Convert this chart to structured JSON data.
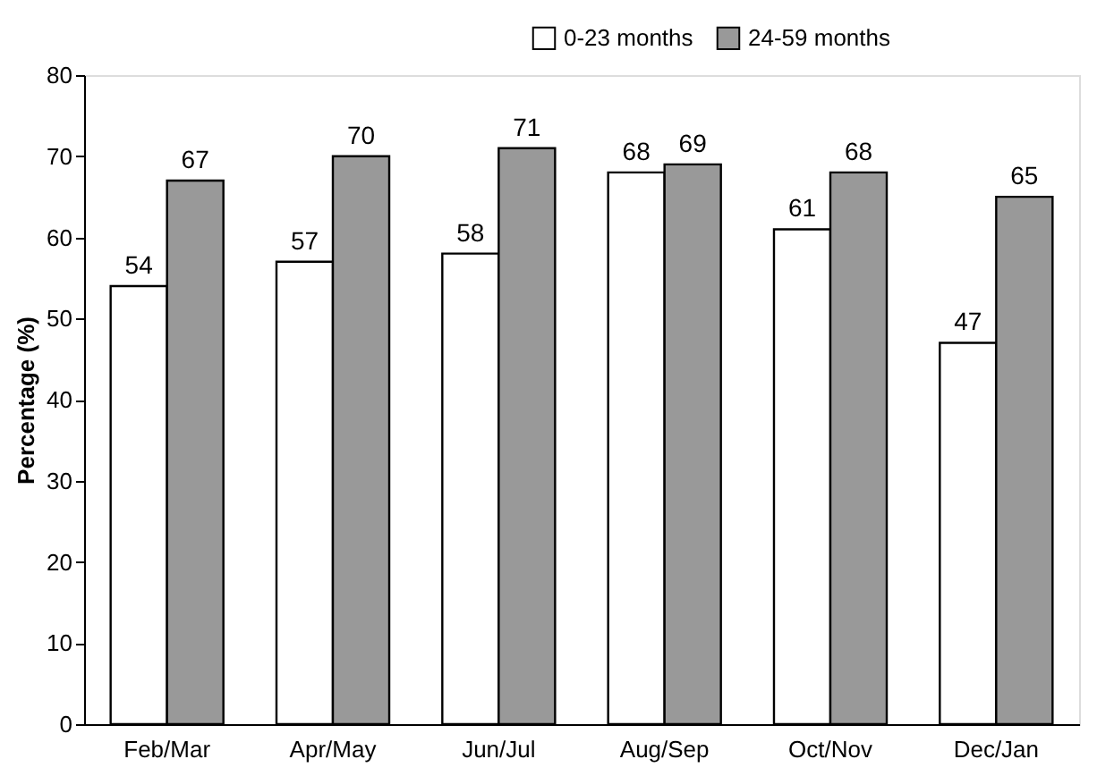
{
  "chart_data": {
    "type": "bar",
    "ylabel": "Percentage (%)",
    "categories": [
      "Feb/Mar",
      "Apr/May",
      "Jun/Jul",
      "Aug/Sep",
      "Oct/Nov",
      "Dec/Jan"
    ],
    "series": [
      {
        "name": "0-23 months",
        "color": "#ffffff",
        "values": [
          54,
          57,
          58,
          68,
          61,
          47
        ]
      },
      {
        "name": "24-59 months",
        "color": "#999999",
        "values": [
          67,
          70,
          71,
          69,
          68,
          65
        ]
      }
    ],
    "ylim": [
      0,
      80
    ],
    "yticks": [
      0,
      10,
      20,
      30,
      40,
      50,
      60,
      70,
      80
    ],
    "data_labels": true,
    "legend": "top right",
    "grid": false
  }
}
